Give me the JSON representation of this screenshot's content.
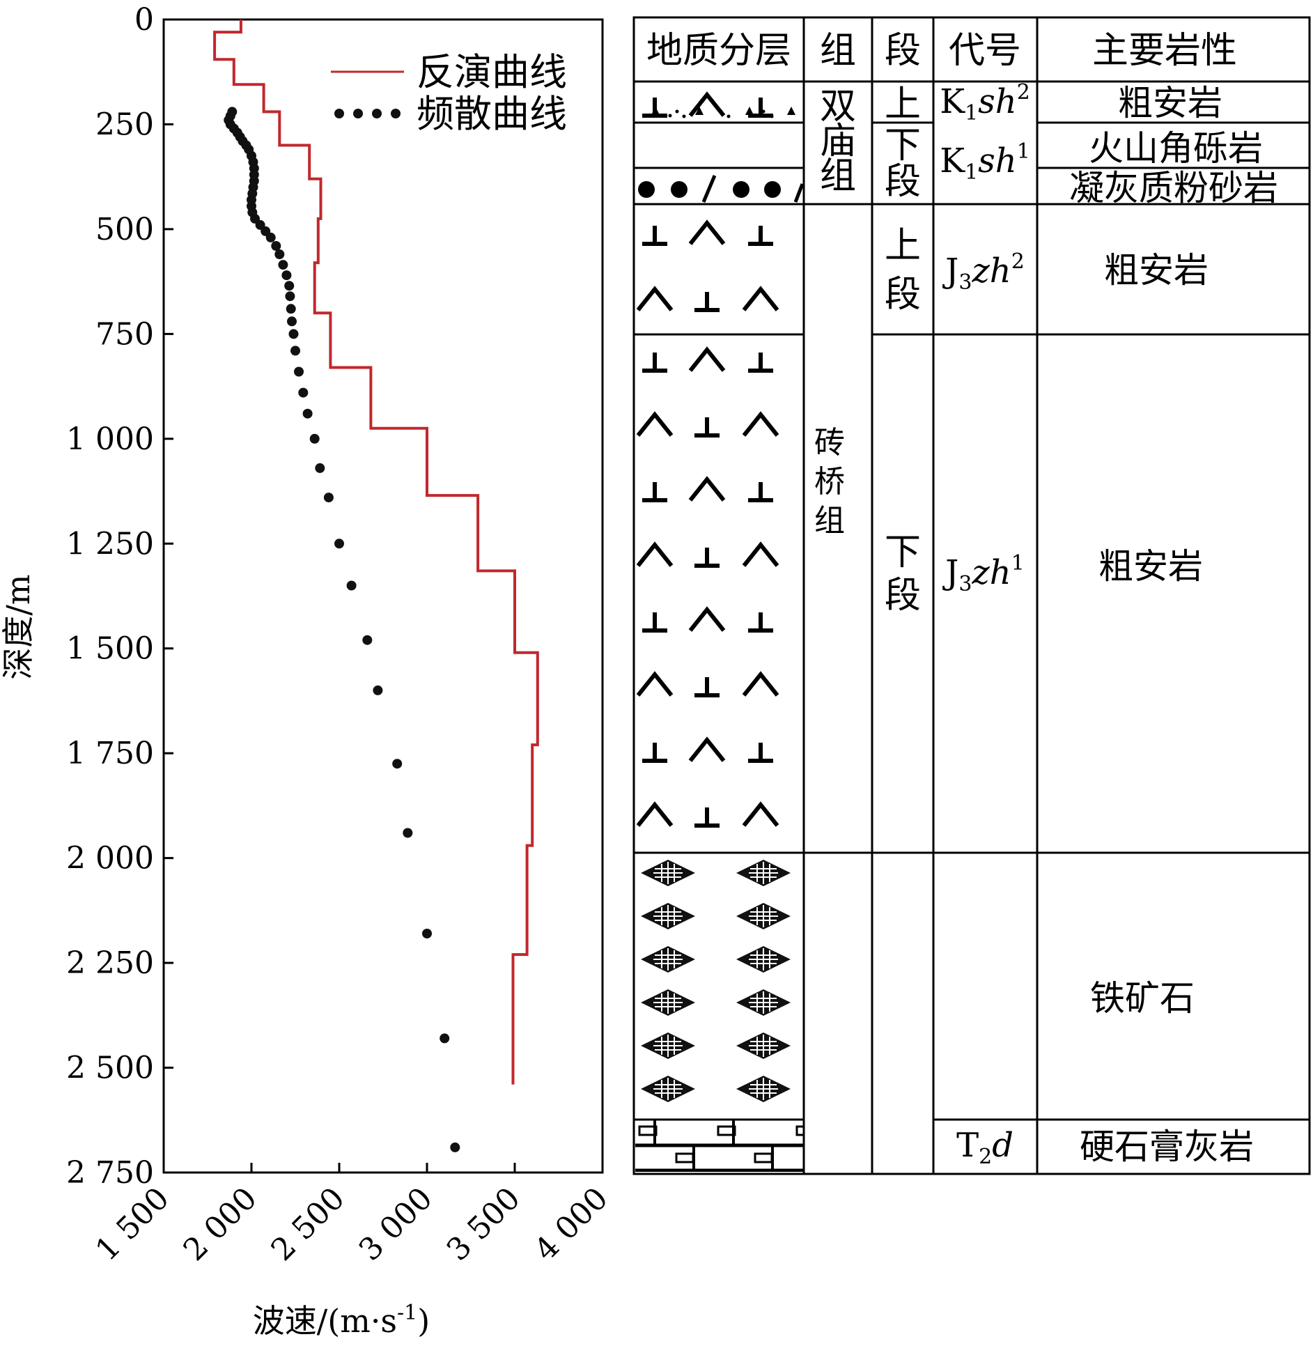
{
  "chart_data": {
    "type": "line",
    "xlabel": "波速/(m·s-1)",
    "ylabel": "深度/m",
    "xlim": [
      1500,
      4000
    ],
    "ylim": [
      0,
      2750
    ],
    "y_inverted": true,
    "xticks": [
      1500,
      2000,
      2500,
      3000,
      3500,
      4000
    ],
    "xtick_labels": [
      "1 500",
      "2 000",
      "2 500",
      "3 000",
      "3 500",
      "4 000"
    ],
    "yticks": [
      0,
      250,
      500,
      750,
      1000,
      1250,
      1500,
      1750,
      2000,
      2250,
      2500,
      2750
    ],
    "ytick_labels": [
      "0",
      "250",
      "500",
      "750",
      "1 000",
      "1 250",
      "1 500",
      "1 750",
      "2 000",
      "2 250",
      "2 500",
      "2 750"
    ],
    "legend_position": "top-right",
    "series": [
      {
        "name": "反演曲线",
        "style": "step-line",
        "color": "#c0282d",
        "points": [
          [
            1940,
            0
          ],
          [
            1940,
            30
          ],
          [
            1790,
            30
          ],
          [
            1790,
            95
          ],
          [
            1900,
            95
          ],
          [
            1900,
            155
          ],
          [
            2070,
            155
          ],
          [
            2070,
            220
          ],
          [
            2160,
            220
          ],
          [
            2160,
            300
          ],
          [
            2330,
            300
          ],
          [
            2330,
            380
          ],
          [
            2395,
            380
          ],
          [
            2395,
            475
          ],
          [
            2380,
            475
          ],
          [
            2380,
            580
          ],
          [
            2360,
            580
          ],
          [
            2360,
            700
          ],
          [
            2450,
            700
          ],
          [
            2450,
            830
          ],
          [
            2680,
            830
          ],
          [
            2680,
            975
          ],
          [
            3000,
            975
          ],
          [
            3000,
            1135
          ],
          [
            3290,
            1135
          ],
          [
            3290,
            1315
          ],
          [
            3500,
            1315
          ],
          [
            3500,
            1510
          ],
          [
            3630,
            1510
          ],
          [
            3630,
            1730
          ],
          [
            3600,
            1730
          ],
          [
            3600,
            1970
          ],
          [
            3570,
            1970
          ],
          [
            3570,
            2230
          ],
          [
            3490,
            2230
          ],
          [
            3490,
            2540
          ]
        ]
      },
      {
        "name": "频散曲线",
        "style": "dots",
        "color": "#111111",
        "points": [
          [
            1890,
            220
          ],
          [
            1880,
            230
          ],
          [
            1870,
            240
          ],
          [
            1880,
            250
          ],
          [
            1900,
            260
          ],
          [
            1920,
            270
          ],
          [
            1935,
            280
          ],
          [
            1950,
            290
          ],
          [
            1970,
            300
          ],
          [
            1985,
            310
          ],
          [
            2000,
            325
          ],
          [
            2010,
            340
          ],
          [
            2015,
            355
          ],
          [
            2015,
            370
          ],
          [
            2015,
            385
          ],
          [
            2010,
            400
          ],
          [
            2005,
            415
          ],
          [
            2000,
            430
          ],
          [
            2000,
            445
          ],
          [
            2005,
            460
          ],
          [
            2020,
            475
          ],
          [
            2050,
            490
          ],
          [
            2080,
            505
          ],
          [
            2110,
            520
          ],
          [
            2140,
            540
          ],
          [
            2160,
            560
          ],
          [
            2180,
            585
          ],
          [
            2200,
            610
          ],
          [
            2215,
            635
          ],
          [
            2220,
            660
          ],
          [
            2225,
            690
          ],
          [
            2230,
            720
          ],
          [
            2240,
            750
          ],
          [
            2250,
            790
          ],
          [
            2270,
            840
          ],
          [
            2295,
            890
          ],
          [
            2320,
            940
          ],
          [
            2360,
            1000
          ],
          [
            2390,
            1070
          ],
          [
            2440,
            1140
          ],
          [
            2500,
            1250
          ],
          [
            2570,
            1350
          ],
          [
            2660,
            1480
          ],
          [
            2720,
            1600
          ],
          [
            2830,
            1775
          ],
          [
            2890,
            1940
          ],
          [
            3000,
            2180
          ],
          [
            3100,
            2430
          ],
          [
            3160,
            2690
          ]
        ]
      }
    ]
  },
  "strat_table": {
    "headers": {
      "layer": "地质分层",
      "group": "组",
      "section": "段",
      "code": "代号",
      "lithology": "主要岩性"
    },
    "groups": {
      "shuangmiao": "双庙组",
      "zhuanqiao": "砖桥组"
    },
    "sections": {
      "k_upper": "上",
      "k_lower": "下段",
      "j_upper": "上段",
      "j_lower": "下段"
    },
    "codes": {
      "k1sh2": {
        "main": "K",
        "sub": "1",
        "it": "sh",
        "sup": "2"
      },
      "k1sh1": {
        "main": "K",
        "sub": "1",
        "it": "sh",
        "sup": "1"
      },
      "j3zh2": {
        "main": "J",
        "sub": "3",
        "it": "zh",
        "sup": "2"
      },
      "j3zh1": {
        "main": "J",
        "sub": "3",
        "it": "zh",
        "sup": "1"
      },
      "t2d": {
        "main": "T",
        "sub": "2",
        "it": "d",
        "sup": ""
      }
    },
    "lithology": {
      "r1": "粗安岩",
      "r2": "火山角砾岩",
      "r3": "凝灰质粉砂岩",
      "r4": "粗安岩",
      "r5": "粗安岩",
      "r6": "铁矿石",
      "r7": "硬石膏灰岩"
    }
  }
}
